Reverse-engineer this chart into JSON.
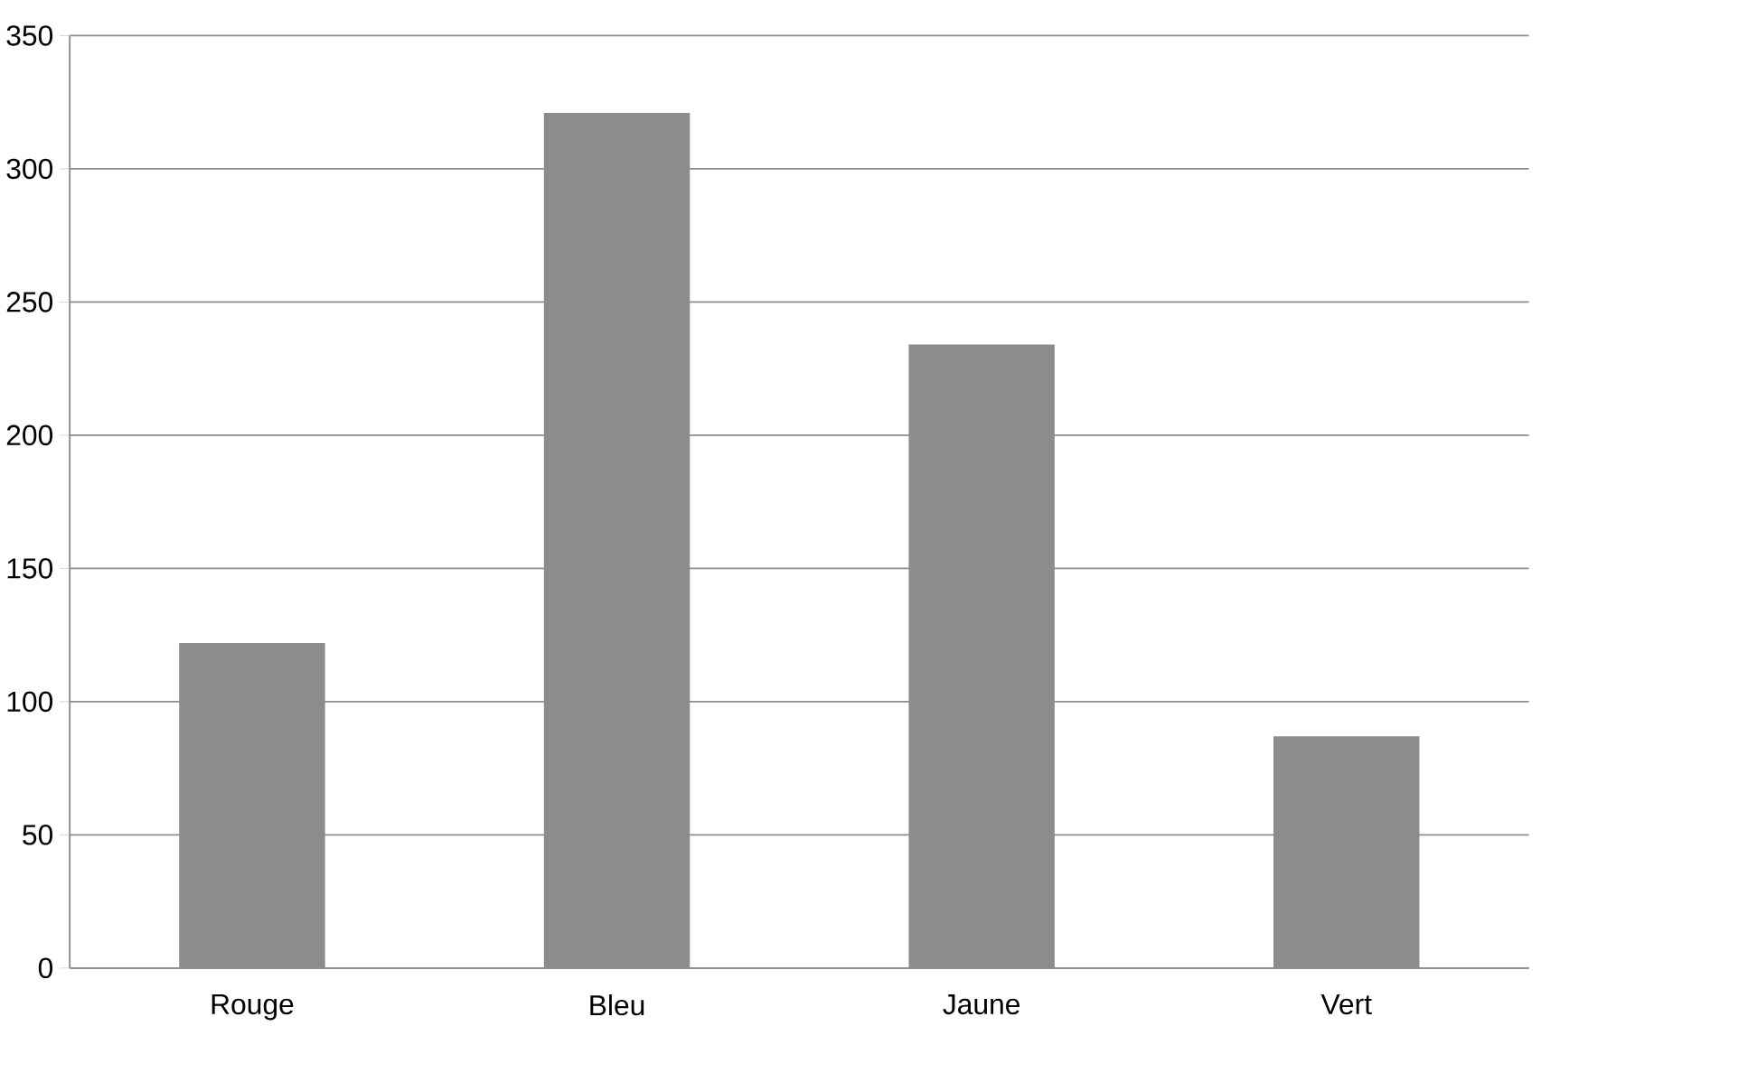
{
  "chart_data": {
    "type": "bar",
    "categories": [
      "Rouge",
      "Bleu",
      "Jaune",
      "Vert"
    ],
    "values": [
      122,
      321,
      234,
      87
    ],
    "color": "#8c8c8c",
    "ylim": [
      0,
      350
    ],
    "yticks": [
      0,
      50,
      100,
      150,
      200,
      250,
      300,
      350
    ],
    "grid": "y"
  }
}
